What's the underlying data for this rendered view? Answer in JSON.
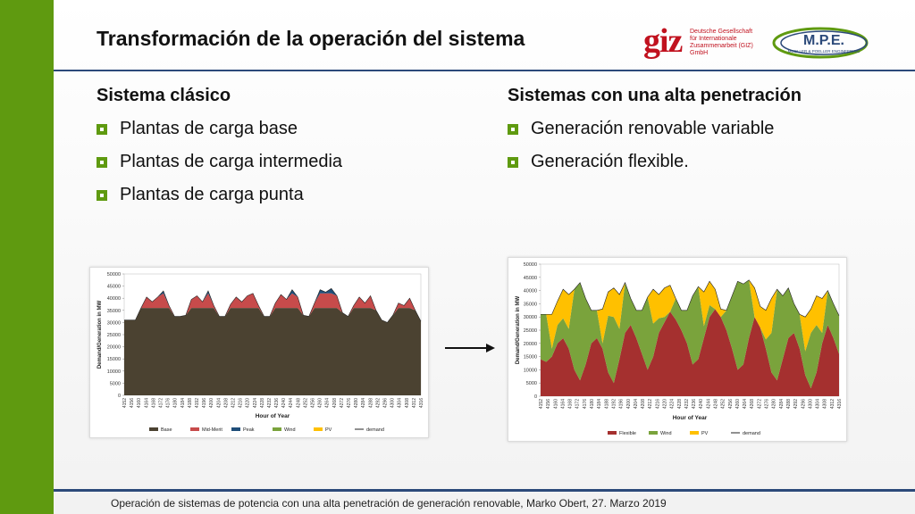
{
  "slide": {
    "title": "Transformación de la operación del sistema",
    "footer": "Operación de sistemas de potencia con una alta penetración de generación renovable, Marko Obert, 27. Marzo 2019",
    "colors": {
      "sidebar": "#5f9a10",
      "rule": "#2c4a7a"
    }
  },
  "logos": {
    "giz": {
      "word": "giz",
      "subtitle": "Deutsche Gesellschaft\nfür Internationale\nZusammenarbeit (GIZ) GmbH"
    },
    "mpe": {
      "word": "M.P.E.",
      "subtitle": "MOELLER & POELLER ENGINEERING"
    }
  },
  "left_column": {
    "heading": "Sistema clásico",
    "items": [
      "Plantas de carga base",
      "Plantas de carga intermedia",
      "Plantas de carga punta"
    ]
  },
  "right_column": {
    "heading": "Sistemas con una alta penetración",
    "items": [
      "Generación renovable variable",
      "Generación flexible."
    ]
  },
  "chart_data": [
    {
      "type": "area",
      "stacked": true,
      "xlabel": "Hour of Year",
      "ylabel": "Demand/Generation in MW",
      "ylim": [
        0,
        50000
      ],
      "yticks": [
        0,
        5000,
        10000,
        15000,
        20000,
        25000,
        30000,
        35000,
        40000,
        45000,
        50000
      ],
      "xticks": [
        "4152",
        "4156",
        "4160",
        "4164",
        "4168",
        "4172",
        "4176",
        "4180",
        "4184",
        "4188",
        "4192",
        "4196",
        "4200",
        "4204",
        "4208",
        "4212",
        "4216",
        "4220",
        "4224",
        "4228",
        "4232",
        "4236",
        "4240",
        "4244",
        "4248",
        "4252",
        "4256",
        "4260",
        "4264",
        "4268",
        "4272",
        "4276",
        "4280",
        "4284",
        "4288",
        "4292",
        "4296",
        "4300",
        "4304",
        "4308",
        "4312",
        "4316"
      ],
      "legend": [
        "Base",
        "Mid-Merit",
        "Peak",
        "Wind",
        "PV",
        "demand"
      ],
      "colors": [
        "#4b4231",
        "#c74b4b",
        "#1f4e79",
        "#7aa33c",
        "#ffc000",
        "#222222"
      ],
      "demand": [
        31000,
        31000,
        31000,
        36000,
        40500,
        38500,
        40500,
        43000,
        37000,
        32500,
        32500,
        33000,
        39500,
        41000,
        38500,
        43000,
        37000,
        32500,
        32500,
        37500,
        40500,
        38500,
        41000,
        42000,
        37000,
        32500,
        32500,
        38000,
        41500,
        39500,
        43500,
        40500,
        33000,
        32500,
        38000,
        43500,
        42500,
        44000,
        41000,
        34000,
        32500,
        37000,
        40500,
        38000,
        41000,
        35000,
        31000,
        30000,
        33000,
        38000,
        37000,
        40000,
        35000,
        30500
      ],
      "base": 36000
    },
    {
      "type": "area",
      "stacked": true,
      "xlabel": "Hour of Year",
      "ylabel": "Demand/Generation in MW",
      "ylim": [
        0,
        50000
      ],
      "yticks": [
        0,
        5000,
        10000,
        15000,
        20000,
        25000,
        30000,
        35000,
        40000,
        45000,
        50000
      ],
      "xticks": [
        "4152",
        "4156",
        "4160",
        "4164",
        "4168",
        "4172",
        "4176",
        "4180",
        "4184",
        "4188",
        "4192",
        "4196",
        "4200",
        "4204",
        "4208",
        "4212",
        "4216",
        "4220",
        "4224",
        "4228",
        "4232",
        "4236",
        "4240",
        "4244",
        "4248",
        "4252",
        "4256",
        "4260",
        "4264",
        "4268",
        "4272",
        "4276",
        "4280",
        "4284",
        "4288",
        "4292",
        "4296",
        "4300",
        "4304",
        "4308",
        "4312",
        "4316"
      ],
      "legend": [
        "Flexible",
        "Wind",
        "PV",
        "demand"
      ],
      "colors": [
        "#a5302f",
        "#7aa33c",
        "#ffc000",
        "#222222"
      ],
      "demand": [
        31000,
        31000,
        31000,
        36000,
        40500,
        38500,
        40500,
        43000,
        37000,
        32500,
        32500,
        33000,
        39500,
        41000,
        38500,
        43000,
        37000,
        32500,
        32500,
        37500,
        40500,
        38500,
        41000,
        42000,
        37000,
        32500,
        32500,
        38000,
        41500,
        39500,
        43500,
        40500,
        33000,
        32500,
        38000,
        43500,
        42500,
        44000,
        41000,
        34000,
        32500,
        37000,
        40500,
        38000,
        41000,
        35000,
        31000,
        30000,
        33000,
        38000,
        37000,
        40000,
        35000,
        30500
      ],
      "flexible": [
        14000,
        13000,
        15000,
        20000,
        22000,
        18000,
        10000,
        6000,
        12000,
        20000,
        22000,
        18000,
        9000,
        5000,
        14000,
        24000,
        27000,
        22000,
        16000,
        10000,
        15000,
        24000,
        28000,
        32000,
        29000,
        25000,
        20000,
        12000,
        14000,
        22000,
        30000,
        33000,
        30000,
        25000,
        18000,
        10000,
        12000,
        22000,
        30000,
        26000,
        18000,
        9000,
        6000,
        14000,
        22000,
        24000,
        18000,
        8000,
        3000,
        9000,
        20000,
        27000,
        22000,
        16000
      ]
    }
  ]
}
